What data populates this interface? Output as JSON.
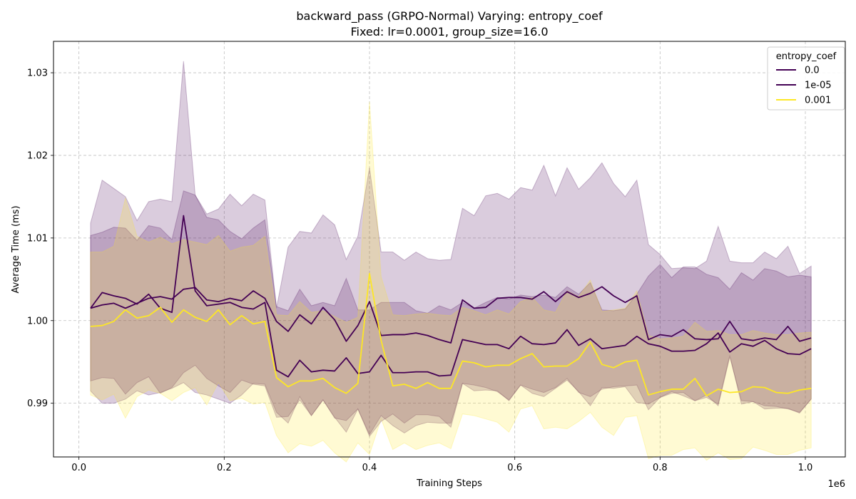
{
  "chart_data": {
    "type": "line",
    "title": "backward_pass (GRPO-Normal) Varying: entropy_coef",
    "subtitle": "Fixed: lr=0.0001, group_size=16.0",
    "xlabel": "Training Steps",
    "ylabel": "Average Time (ms)",
    "x_offset_label": "1e6",
    "xlim": [
      -0.035,
      1.055
    ],
    "ylim": [
      0.9835,
      1.0338
    ],
    "xticks": [
      0.0,
      0.2,
      0.4,
      0.6,
      0.8,
      1.0
    ],
    "xtick_labels": [
      "0.0",
      "0.2",
      "0.4",
      "0.6",
      "0.8",
      "1.0"
    ],
    "yticks": [
      0.99,
      1.0,
      1.01,
      1.02,
      1.03
    ],
    "ytick_labels": [
      "0.99",
      "1.00",
      "1.01",
      "1.02",
      "1.03"
    ],
    "grid": true,
    "legend": {
      "title": "entropy_coef",
      "position": "top-right"
    },
    "x": [
      0.016,
      0.032,
      0.048,
      0.064,
      0.08,
      0.096,
      0.112,
      0.128,
      0.144,
      0.16,
      0.176,
      0.192,
      0.208,
      0.224,
      0.24,
      0.256,
      0.272,
      0.288,
      0.304,
      0.32,
      0.336,
      0.352,
      0.368,
      0.384,
      0.4,
      0.416,
      0.432,
      0.448,
      0.464,
      0.48,
      0.496,
      0.512,
      0.528,
      0.544,
      0.56,
      0.576,
      0.592,
      0.608,
      0.624,
      0.64,
      0.656,
      0.672,
      0.688,
      0.704,
      0.72,
      0.736,
      0.752,
      0.768,
      0.784,
      0.8,
      0.816,
      0.832,
      0.848,
      0.864,
      0.88,
      0.896,
      0.912,
      0.928,
      0.944,
      0.96,
      0.976,
      0.992,
      1.008
    ],
    "series": [
      {
        "name": "0.0",
        "color": "#440154",
        "values": [
          1.0015,
          1.0034,
          1.003,
          1.0027,
          1.002,
          1.0032,
          1.0015,
          1.001,
          1.0127,
          1.0036,
          1.0018,
          1.002,
          1.0022,
          1.0016,
          1.0014,
          1.0022,
          0.994,
          0.9932,
          0.9952,
          0.9938,
          0.994,
          0.9939,
          0.9955,
          0.9936,
          0.9938,
          0.9958,
          0.9937,
          0.9937,
          0.9938,
          0.9938,
          0.9933,
          0.9934,
          0.9977,
          0.9974,
          0.9971,
          0.9971,
          0.9966,
          0.9981,
          0.9972,
          0.9971,
          0.9973,
          0.9989,
          0.997,
          0.9978,
          0.9966,
          0.9968,
          0.997,
          0.9981,
          0.9972,
          0.9969,
          0.9963,
          0.9963,
          0.9964,
          0.9972,
          0.9985,
          0.9962,
          0.9972,
          0.9969,
          0.9976,
          0.9966,
          0.996,
          0.9959,
          0.9966
        ],
        "upper": [
          1.0103,
          1.0107,
          1.0113,
          1.0112,
          1.0097,
          1.0115,
          1.0112,
          1.0098,
          1.0157,
          1.0152,
          1.0125,
          1.0122,
          1.0108,
          1.0099,
          1.0112,
          1.0122,
          1.0017,
          1.0012,
          1.0038,
          1.0018,
          1.0022,
          1.0018,
          1.0051,
          1.0013,
          1.0013,
          1.0022,
          1.0022,
          1.0022,
          1.0012,
          1.0009,
          1.0018,
          1.0013,
          1.0022,
          1.0015,
          1.0022,
          1.0028,
          1.0026,
          1.0031,
          1.0029,
          1.0031,
          1.0028,
          1.0041,
          1.0032,
          1.0046,
          1.0013,
          1.0012,
          1.0014,
          1.0032,
          1.0054,
          1.0068,
          1.0052,
          1.0065,
          1.0065,
          1.0056,
          1.0052,
          1.0038,
          1.0058,
          1.0049,
          1.0063,
          1.006,
          1.0053,
          1.0055,
          1.0053
        ],
        "lower": [
          0.9927,
          0.9931,
          0.993,
          0.9911,
          0.9925,
          0.9932,
          0.9912,
          0.9919,
          0.9937,
          0.9946,
          0.993,
          0.9921,
          0.9913,
          0.9928,
          0.9923,
          0.9921,
          0.9883,
          0.9884,
          0.9904,
          0.9885,
          0.9904,
          0.9882,
          0.9879,
          0.9893,
          0.986,
          0.9878,
          0.9887,
          0.9876,
          0.9886,
          0.9886,
          0.9884,
          0.9871,
          0.9924,
          0.9922,
          0.9919,
          0.9914,
          0.9904,
          0.9922,
          0.9917,
          0.9913,
          0.9919,
          0.993,
          0.9913,
          0.9908,
          0.9917,
          0.992,
          0.9921,
          0.9922,
          0.9892,
          0.9907,
          0.9914,
          0.9909,
          0.9903,
          0.9907,
          0.9899,
          0.9958,
          0.9899,
          0.9902,
          0.9897,
          0.9896,
          0.9893,
          0.9889,
          0.9905
        ]
      },
      {
        "name": "1e-05",
        "color": "#440154",
        "values": [
          1.0015,
          1.0019,
          1.0021,
          1.0015,
          1.0021,
          1.0027,
          1.0029,
          1.0026,
          1.0038,
          1.004,
          1.0025,
          1.0023,
          1.0027,
          1.0024,
          1.0036,
          1.0027,
          0.9999,
          0.9987,
          1.0007,
          0.9996,
          1.0016,
          1.0001,
          0.9975,
          0.9994,
          1.0023,
          0.9982,
          0.9983,
          0.9983,
          0.9985,
          0.9982,
          0.9977,
          0.9973,
          1.0025,
          1.0015,
          1.0016,
          1.0027,
          1.0028,
          1.0028,
          1.0026,
          1.0035,
          1.0023,
          1.0035,
          1.0028,
          1.0033,
          1.0041,
          1.003,
          1.0022,
          1.003,
          0.9977,
          0.9983,
          0.9981,
          0.9989,
          0.9978,
          0.9977,
          0.9978,
          0.9999,
          0.9978,
          0.9976,
          0.9979,
          0.9977,
          0.9993,
          0.9975,
          0.9979
        ],
        "upper": [
          1.0118,
          1.017,
          1.016,
          1.015,
          1.0121,
          1.0144,
          1.0147,
          1.0144,
          1.0314,
          1.0152,
          1.0129,
          1.0135,
          1.0153,
          1.0139,
          1.0153,
          1.0146,
          1.0015,
          1.0089,
          1.0108,
          1.0106,
          1.0128,
          1.0116,
          1.0074,
          1.0102,
          1.0185,
          1.0083,
          1.0083,
          1.0073,
          1.0083,
          1.0075,
          1.0073,
          1.0074,
          1.0136,
          1.0127,
          1.0151,
          1.0154,
          1.0147,
          1.0161,
          1.0158,
          1.0188,
          1.0151,
          1.0185,
          1.0159,
          1.0173,
          1.0191,
          1.0166,
          1.015,
          1.017,
          1.0092,
          1.008,
          1.0063,
          1.0064,
          1.0063,
          1.0072,
          1.0114,
          1.0072,
          1.007,
          1.007,
          1.0083,
          1.0075,
          1.009,
          1.0057,
          1.0066
        ],
        "lower": [
          0.9915,
          0.99,
          0.99,
          0.9905,
          0.9915,
          0.991,
          0.9913,
          0.9918,
          0.9925,
          0.9913,
          0.991,
          0.9905,
          0.99,
          0.991,
          0.9924,
          0.9923,
          0.9889,
          0.9876,
          0.9908,
          0.9885,
          0.9904,
          0.9883,
          0.9865,
          0.9893,
          0.9862,
          0.9885,
          0.9873,
          0.9864,
          0.9873,
          0.9877,
          0.9876,
          0.9876,
          0.9924,
          0.9915,
          0.9916,
          0.9915,
          0.9903,
          0.9922,
          0.9912,
          0.9908,
          0.9918,
          0.9928,
          0.9914,
          0.9897,
          0.9919,
          0.9918,
          0.992,
          0.9901,
          0.9899,
          0.9907,
          0.9912,
          0.9913,
          0.9903,
          0.991,
          0.9897,
          0.9956,
          0.9903,
          0.9902,
          0.9893,
          0.9894,
          0.9894,
          0.9888,
          0.9905
        ]
      },
      {
        "name": "0.001",
        "color": "#fde725",
        "values": [
          0.9993,
          0.9994,
          0.9999,
          1.0013,
          1.0003,
          1.0006,
          1.0016,
          0.9998,
          1.0013,
          1.0004,
          0.9999,
          1.0013,
          0.9995,
          1.0006,
          0.9996,
          0.9999,
          0.9931,
          0.992,
          0.9927,
          0.9927,
          0.993,
          0.9919,
          0.9912,
          0.9924,
          1.0057,
          0.9976,
          0.9921,
          0.9923,
          0.9918,
          0.9925,
          0.9918,
          0.9918,
          0.9951,
          0.9949,
          0.9944,
          0.9946,
          0.9946,
          0.9954,
          0.996,
          0.9944,
          0.9945,
          0.9945,
          0.9954,
          0.9974,
          0.9947,
          0.9943,
          0.995,
          0.9952,
          0.991,
          0.9914,
          0.9917,
          0.9917,
          0.993,
          0.9909,
          0.9917,
          0.9913,
          0.9914,
          0.992,
          0.9919,
          0.9913,
          0.9912,
          0.9916,
          0.9918
        ],
        "upper": [
          1.0083,
          1.0083,
          1.009,
          1.0148,
          1.0102,
          1.0095,
          1.0101,
          1.0093,
          1.0098,
          1.0095,
          1.0092,
          1.0103,
          1.0084,
          1.0089,
          1.0091,
          1.0102,
          1.0007,
          1.0006,
          1.0023,
          1.001,
          1.0012,
          1.0005,
          0.9998,
          1.0004,
          1.0265,
          1.0053,
          1.0007,
          1.0006,
          1.0008,
          1.0009,
          1.0007,
          1.0006,
          1.0016,
          1.0012,
          1.0007,
          1.0013,
          1.0008,
          1.0023,
          1.0028,
          1.0013,
          1.001,
          1.0036,
          1.0029,
          1.0049,
          1.0011,
          1.0013,
          1.0015,
          1.0036,
          0.9982,
          0.9978,
          0.9979,
          0.9981,
          0.9998,
          0.9987,
          0.9988,
          0.9983,
          0.9983,
          0.9988,
          0.9985,
          0.9983,
          0.9983,
          0.9985,
          0.9986
        ],
        "lower": [
          0.991,
          0.9904,
          0.9911,
          0.9882,
          0.9908,
          0.9916,
          0.9912,
          0.9903,
          0.9913,
          0.9919,
          0.9898,
          0.9925,
          0.9903,
          0.9906,
          0.9899,
          0.9901,
          0.9861,
          0.984,
          0.9851,
          0.9848,
          0.9855,
          0.984,
          0.9829,
          0.9852,
          0.9838,
          0.9881,
          0.9844,
          0.9852,
          0.9844,
          0.9849,
          0.9852,
          0.9845,
          0.9887,
          0.9885,
          0.9881,
          0.9877,
          0.9865,
          0.9893,
          0.9897,
          0.9869,
          0.9871,
          0.9869,
          0.9878,
          0.9889,
          0.9871,
          0.9861,
          0.9883,
          0.9885,
          0.9833,
          0.9837,
          0.9837,
          0.9844,
          0.9846,
          0.9831,
          0.984,
          0.9832,
          0.9833,
          0.9847,
          0.9843,
          0.9838,
          0.9838,
          0.9843,
          0.9846
        ]
      }
    ]
  }
}
